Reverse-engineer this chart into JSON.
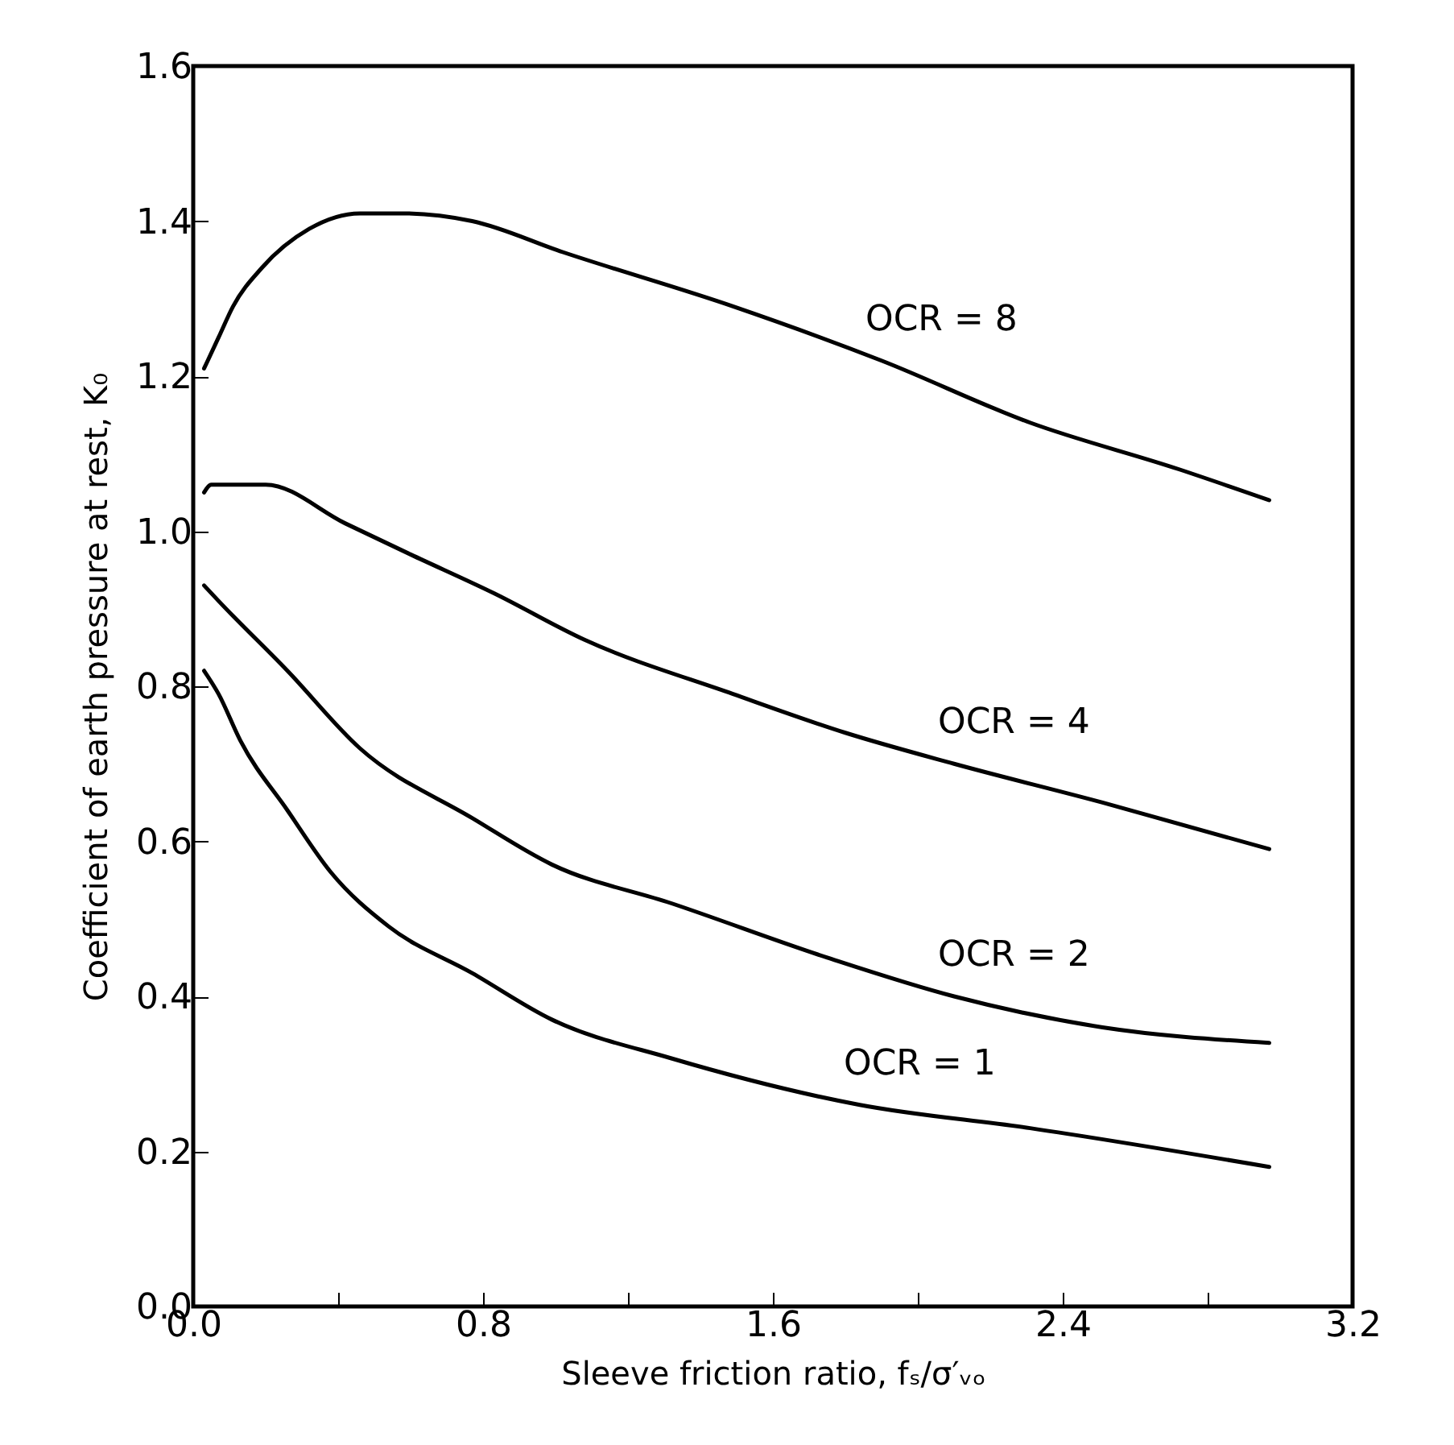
{
  "chart_data": {
    "type": "line",
    "xlabel": "Sleeve friction ratio, fₛ/σ′ᵥₒ",
    "ylabel": "Coefficient of earth pressure at rest, K₀",
    "xlim": [
      0,
      3.2
    ],
    "ylim": [
      0,
      1.6
    ],
    "xticks": [
      {
        "value": 0,
        "label": "0.0"
      },
      {
        "value": 0.4,
        "label": null
      },
      0.8,
      {
        "value": 1.2,
        "label": null
      },
      1.6,
      {
        "value": 2.0,
        "label": null
      },
      2.4,
      {
        "value": 2.8,
        "label": null
      },
      3.2
    ],
    "yticks": [
      {
        "value": 0,
        "label": "0.0"
      },
      0.2,
      0.4,
      0.6,
      0.8,
      {
        "value": 1.0,
        "label": "1.0"
      },
      1.2,
      1.4,
      1.6
    ],
    "grid": false,
    "marker": "none",
    "line_style": "solid",
    "series": [
      {
        "name": "OCR = 8",
        "color": "#000000",
        "x": [
          0.03,
          0.07,
          0.11,
          0.19,
          0.32,
          0.46,
          0.58,
          0.77,
          1.02,
          1.49,
          1.9,
          2.31,
          2.72,
          2.97
        ],
        "values": [
          1.21,
          1.25,
          1.29,
          1.34,
          1.39,
          1.41,
          1.41,
          1.4,
          1.36,
          1.29,
          1.22,
          1.14,
          1.08,
          1.04
        ]
      },
      {
        "name": "OCR = 4",
        "color": "#000000",
        "x": [
          0.03,
          0.05,
          0.2,
          0.42,
          0.6,
          0.83,
          1.08,
          1.49,
          1.8,
          2.1,
          2.51,
          2.97
        ],
        "values": [
          1.05,
          1.06,
          1.06,
          1.01,
          0.97,
          0.92,
          0.86,
          0.79,
          0.74,
          0.7,
          0.65,
          0.59
        ]
      },
      {
        "name": "OCR = 2",
        "color": "#000000",
        "x": [
          0.03,
          0.07,
          0.26,
          0.46,
          0.77,
          0.99,
          1.32,
          1.75,
          2.1,
          2.51,
          2.97
        ],
        "values": [
          0.93,
          0.91,
          0.82,
          0.72,
          0.63,
          0.57,
          0.52,
          0.45,
          0.4,
          0.36,
          0.34
        ]
      },
      {
        "name": "OCR = 1",
        "color": "#000000",
        "x": [
          0.03,
          0.07,
          0.13,
          0.26,
          0.38,
          0.54,
          0.77,
          0.99,
          1.32,
          1.84,
          2.31,
          2.97
        ],
        "values": [
          0.82,
          0.79,
          0.73,
          0.64,
          0.56,
          0.49,
          0.43,
          0.37,
          0.32,
          0.26,
          0.23,
          0.18
        ]
      }
    ]
  }
}
